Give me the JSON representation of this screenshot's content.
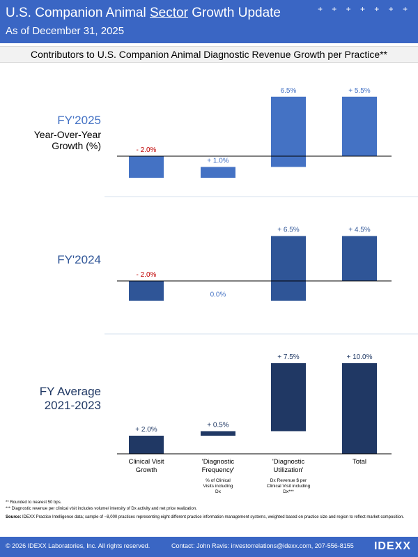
{
  "header": {
    "title_pre": "U.S. Companion Animal ",
    "title_ul": "Sector",
    "title_post": " Growth Update",
    "subtitle": "As of December 31, 2025",
    "decoration": "+ + + + + + +"
  },
  "subtitle_bar": "Contributors to U.S. Companion Animal Diagnostic Revenue Growth per Practice**",
  "panels": [
    {
      "label_line1": "FY'2025",
      "label_line2": "Year-Over-Year",
      "label_line3": "Growth (%)"
    },
    {
      "label_line1": "FY'2024"
    },
    {
      "label_line1": "FY Average",
      "label_line2": "2021-2023"
    }
  ],
  "categories": [
    {
      "line1": "Clinical Visit",
      "line2": "Growth",
      "sub": []
    },
    {
      "line1": "'Diagnostic",
      "line2": "Frequency'",
      "sub": [
        "% of Clinical",
        "Visits including",
        "Dx"
      ]
    },
    {
      "line1": "'Diagnostic",
      "line2": "Utilization'",
      "sub": [
        "Dx Revenue $ per",
        "Clinical Visit including",
        "Dx***"
      ]
    },
    {
      "line1": "Total",
      "line2": "",
      "sub": []
    }
  ],
  "chart_data": [
    {
      "type": "bar",
      "subtype": "waterfall",
      "title": "FY'2025 Year-Over-Year Growth (%)",
      "categories": [
        "Clinical Visit Growth",
        "'Diagnostic Frequency'",
        "'Diagnostic Utilization'",
        "Total"
      ],
      "values": [
        -2.0,
        1.0,
        6.5,
        5.5
      ],
      "labels": [
        "- 2.0%",
        "+ 1.0%",
        "6.5%",
        "+ 5.5%"
      ],
      "label_colors": [
        "#c00000",
        "#4472c4",
        "#4472c4",
        "#4472c4"
      ],
      "bar_color": "#4472c4"
    },
    {
      "type": "bar",
      "subtype": "waterfall",
      "title": "FY'2024",
      "categories": [
        "Clinical Visit Growth",
        "'Diagnostic Frequency'",
        "'Diagnostic Utilization'",
        "Total"
      ],
      "values": [
        -2.0,
        0.0,
        6.5,
        4.5
      ],
      "labels": [
        "- 2.0%",
        "0.0%",
        "+ 6.5%",
        "+ 4.5%"
      ],
      "label_colors": [
        "#c00000",
        "#4472c4",
        "#2f5597",
        "#2f5597"
      ],
      "bar_color": "#2f5597"
    },
    {
      "type": "bar",
      "subtype": "waterfall",
      "title": "FY Average 2021-2023",
      "categories": [
        "Clinical Visit Growth",
        "'Diagnostic Frequency'",
        "'Diagnostic Utilization'",
        "Total"
      ],
      "values": [
        2.0,
        0.5,
        7.5,
        10.0
      ],
      "labels": [
        "+ 2.0%",
        "+ 0.5%",
        "+ 7.5%",
        "+ 10.0%"
      ],
      "label_colors": [
        "#1f3864",
        "#1f3864",
        "#1f3864",
        "#1f3864"
      ],
      "bar_color": "#203864"
    }
  ],
  "colors": {
    "header_bg": "#3a66c4",
    "panel_label_blue": "#4472c4",
    "panel_label_mid": "#2f5597",
    "panel_label_dark": "#203864",
    "negative": "#c00000"
  },
  "footnotes": {
    "n1": "** Rounded to nearest 50 bps.",
    "n2": "*** Diagnostic revenue per clinical visit includes volume/ intensity of Dx activity and net price realization.",
    "source_label": "Source:",
    "source_text": " IDEXX Practice Intelligence data; sample of ~8,000 practices representing eight different practice information management systems, weighted based on practice size and region to reflect market composition."
  },
  "footer": {
    "copyright": "© 2026 IDEXX Laboratories, Inc. All rights reserved.",
    "contact": "Contact: John Ravis: investorrelations@idexx.com, 207-556-8155",
    "logo": "IDEXX"
  }
}
